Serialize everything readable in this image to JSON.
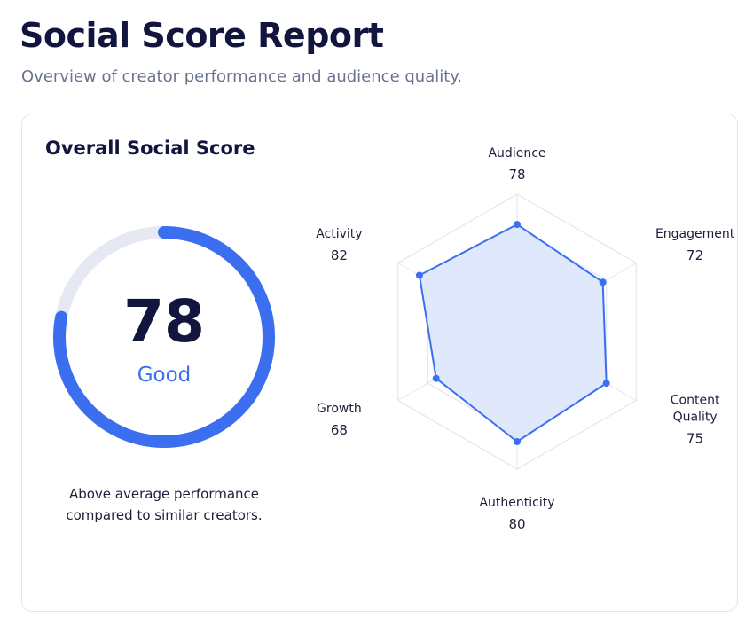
{
  "header": {
    "title": "Social Score Report",
    "subtitle": "Overview of creator performance and audience quality."
  },
  "card": {
    "title": "Overall Social Score"
  },
  "score": {
    "value": "78",
    "rating": "Good",
    "max": 100,
    "description": "Above average performance compared to similar creators."
  },
  "colors": {
    "accent": "#3b6ff0",
    "track": "#e6e9f1",
    "title_text": "#12163f",
    "muted_text": "#6b7290",
    "radar_fill": "#dbe4fb",
    "grid": "#e3e6f0"
  },
  "radar": {
    "max": 100,
    "metrics": [
      {
        "name": "audience",
        "label": "Audience",
        "value": 78
      },
      {
        "name": "engagement",
        "label": "Engagement",
        "value": 72
      },
      {
        "name": "content-quality",
        "label": "Content Quality",
        "value": 75
      },
      {
        "name": "authenticity",
        "label": "Authenticity",
        "value": 80
      },
      {
        "name": "growth",
        "label": "Growth",
        "value": 68
      },
      {
        "name": "activity",
        "label": "Activity",
        "value": 82
      }
    ]
  }
}
